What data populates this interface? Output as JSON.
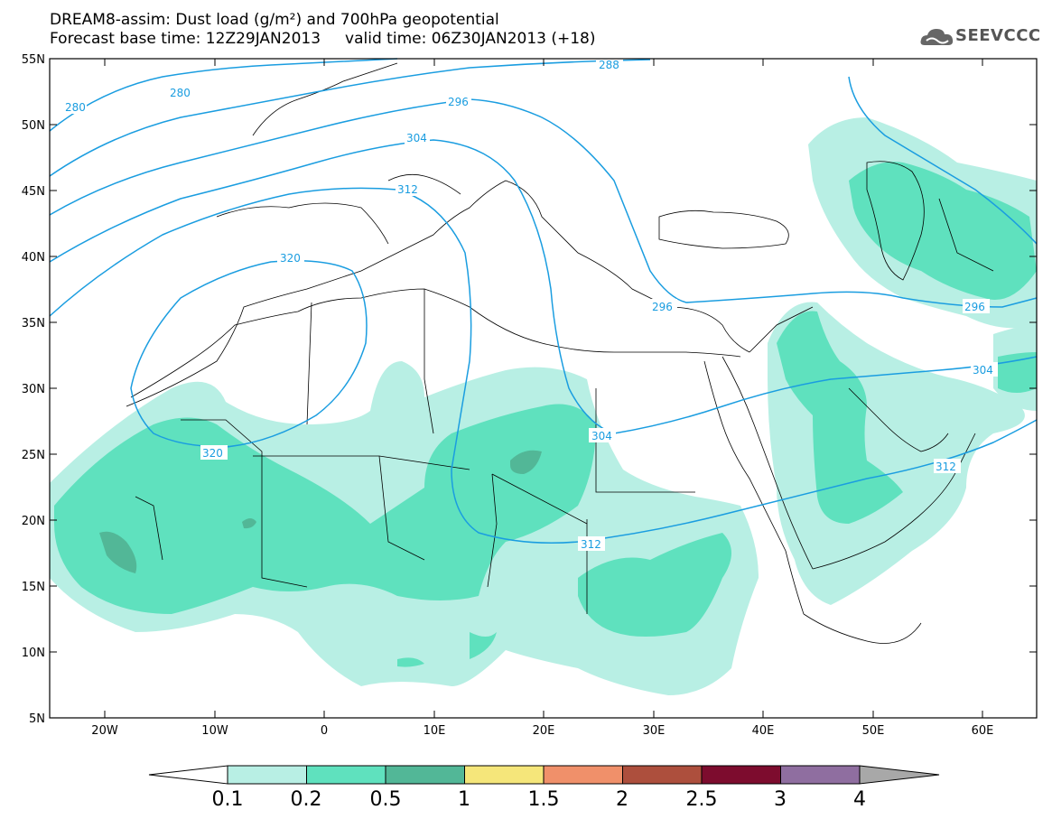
{
  "header": {
    "title_line1": "DREAM8-assim: Dust load (g/m²) and 700hPa geopotential",
    "title_line2": "Forecast base time: 12Z29JAN2013     valid time: 06Z30JAN2013 (+18)",
    "logo_text": "SEEVCCC"
  },
  "map": {
    "lat_labels": [
      "55N",
      "50N",
      "45N",
      "40N",
      "35N",
      "30N",
      "25N",
      "20N",
      "15N",
      "10N",
      "5N"
    ],
    "lon_labels": [
      "20W",
      "10W",
      "0",
      "10E",
      "20E",
      "30E",
      "40E",
      "50E",
      "60E"
    ],
    "colors": {
      "contour": "#1a9de0",
      "dust_01": "#b8efe4",
      "dust_02": "#5fe1be",
      "dust_05": "#52b797",
      "border": "#000000"
    },
    "geopotential_labels": [
      "280",
      "280",
      "288",
      "296",
      "304",
      "312",
      "320",
      "320",
      "304",
      "312",
      "296",
      "296",
      "304",
      "312"
    ]
  },
  "colorbar": {
    "ticks": [
      "0.1",
      "0.2",
      "0.5",
      "1",
      "1.5",
      "2",
      "2.5",
      "3",
      "4"
    ],
    "colors": [
      "#b8efe4",
      "#5fe1be",
      "#52b797",
      "#f5e67a",
      "#f0906a",
      "#ad4f3d",
      "#7d0c2e",
      "#8f6ea0",
      "#a8a8a8"
    ]
  }
}
